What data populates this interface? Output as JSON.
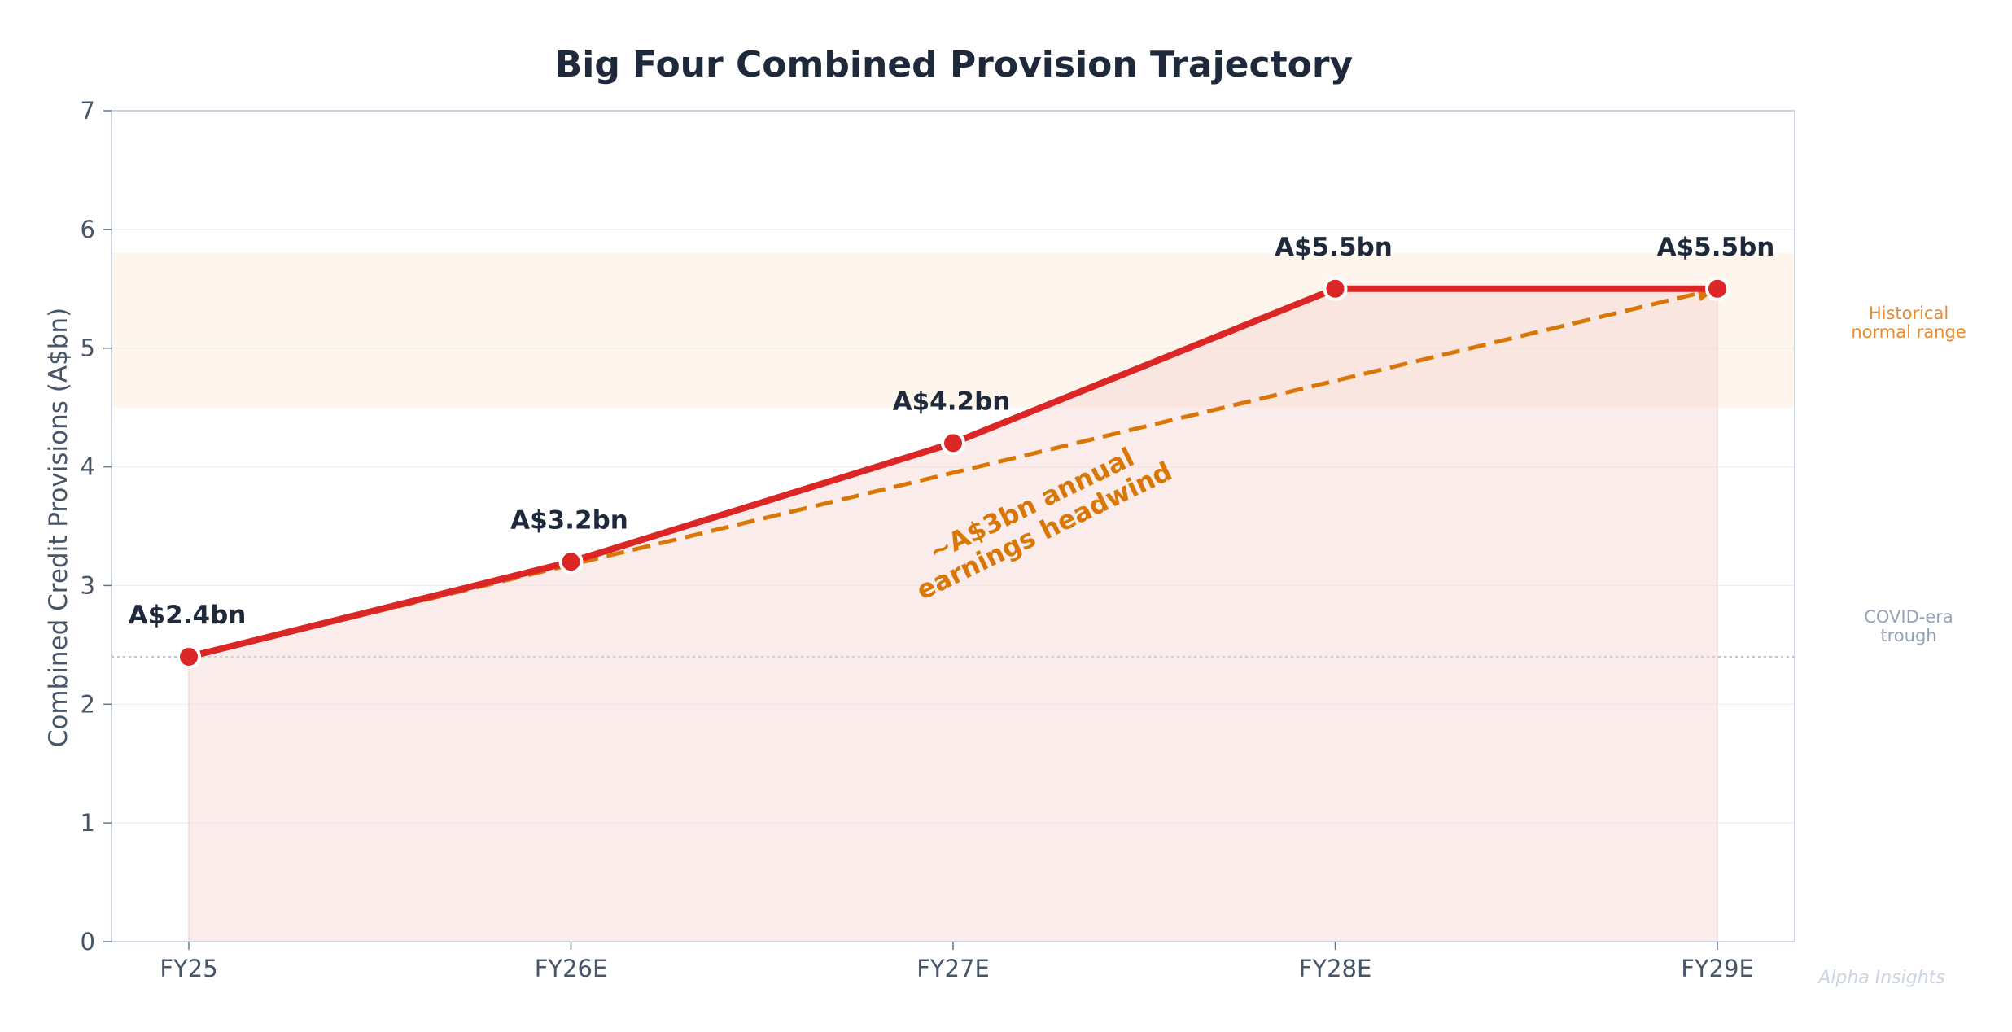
{
  "chart_data": {
    "type": "line",
    "title": "Big Four Combined Provision Trajectory",
    "ylabel": "Combined Credit Provisions (A$bn)",
    "xlabel": "",
    "categories": [
      "FY25",
      "FY26E",
      "FY27E",
      "FY28E",
      "FY29E"
    ],
    "ylim": [
      0,
      7
    ],
    "yticks": [
      0,
      1,
      2,
      3,
      4,
      5,
      6,
      7
    ],
    "grid": true,
    "series": [
      {
        "values": [
          2.4,
          3.2,
          4.2,
          5.5,
          5.5
        ],
        "labels": [
          "A$2.4bn",
          "A$3.2bn",
          "A$4.2bn",
          "A$5.5bn",
          "A$5.5bn"
        ],
        "color": "#dc2626"
      }
    ],
    "trend_line": {
      "from": [
        "FY25",
        2.4
      ],
      "to": [
        "FY29E",
        5.5
      ],
      "color": "#d97706",
      "style": "dashed"
    },
    "bands": [
      {
        "from": 4.5,
        "to": 5.8,
        "label_lines": [
          "Historical",
          "normal range"
        ],
        "color": "#e88a2e"
      }
    ],
    "reference_lines": [
      {
        "y": 2.4,
        "label_lines": [
          "COVID-era",
          "trough"
        ],
        "color": "#94a3b8"
      }
    ],
    "annotation": {
      "lines": [
        "~A$3bn annual",
        "earnings headwind"
      ],
      "color": "#d97706"
    },
    "watermark": "Alpha Insights"
  }
}
